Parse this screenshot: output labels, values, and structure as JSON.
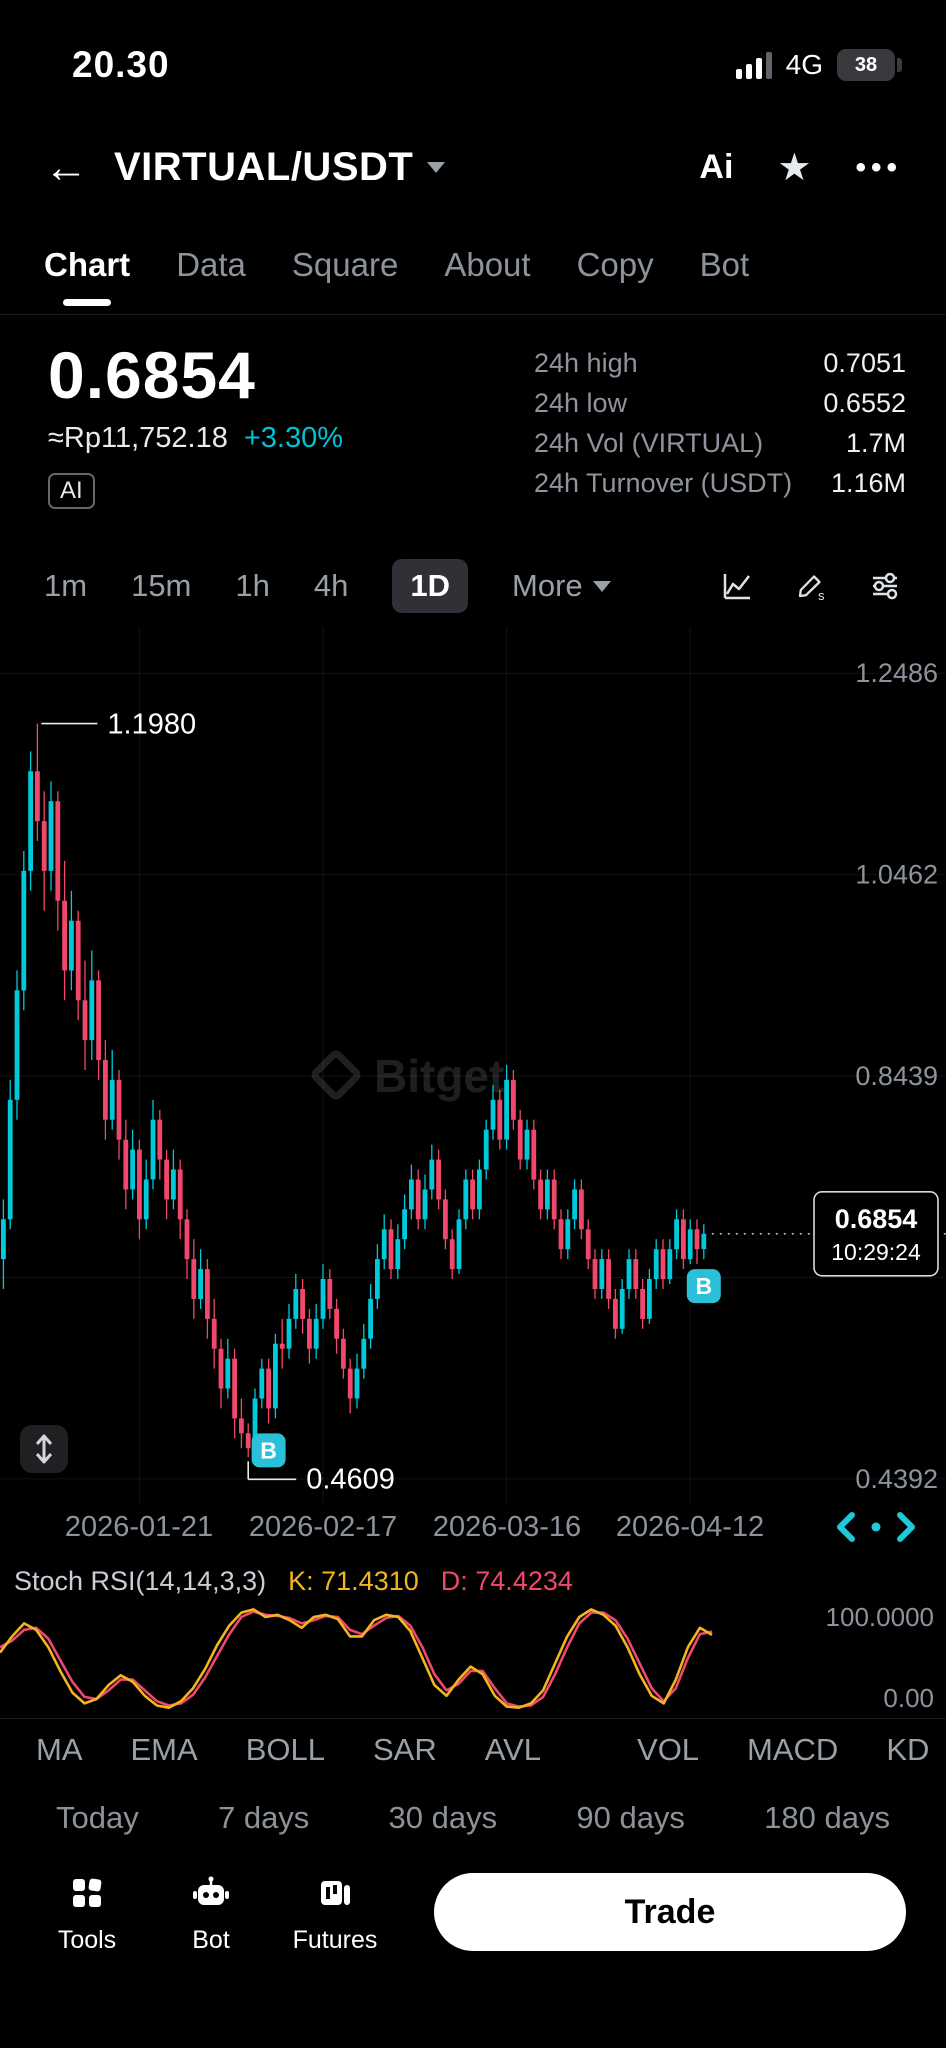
{
  "status_bar": {
    "time": "20.30",
    "network": "4G",
    "battery": "38"
  },
  "header": {
    "title": "VIRTUAL/USDT",
    "ai_label": "Ai"
  },
  "tabs": [
    {
      "label": "Chart",
      "active": true
    },
    {
      "label": "Data",
      "active": false
    },
    {
      "label": "Square",
      "active": false
    },
    {
      "label": "About",
      "active": false
    },
    {
      "label": "Copy",
      "active": false
    },
    {
      "label": "Bot",
      "active": false
    }
  ],
  "price": {
    "value": "0.6854",
    "fiat": "≈Rp11,752.18",
    "change": "+3.30%",
    "ai_badge": "AI"
  },
  "stats": [
    {
      "label": "24h high",
      "value": "0.7051"
    },
    {
      "label": "24h low",
      "value": "0.6552"
    },
    {
      "label": "24h Vol (VIRTUAL)",
      "value": "1.7M"
    },
    {
      "label": "24h Turnover (USDT)",
      "value": "1.16M"
    }
  ],
  "timeframes": {
    "items": [
      {
        "label": "1m",
        "active": false
      },
      {
        "label": "15m",
        "active": false
      },
      {
        "label": "1h",
        "active": false
      },
      {
        "label": "4h",
        "active": false
      },
      {
        "label": "1D",
        "active": true
      }
    ],
    "more_label": "More"
  },
  "chart_data": {
    "type": "candlestick",
    "ylim": [
      0.415,
      1.295
    ],
    "gridline_prices": [
      1.2486,
      1.0462,
      0.8439,
      0.6415,
      0.4392
    ],
    "y_axis_labels": [
      {
        "label": "1.2486",
        "price": 1.2486
      },
      {
        "label": "1.0462",
        "price": 1.0462
      },
      {
        "label": "0.8439",
        "price": 0.8439
      },
      {
        "label": "0.4392",
        "price": 0.4392
      }
    ],
    "x_axis_labels": [
      {
        "label": "2026-01-21",
        "index": 20
      },
      {
        "label": "2026-02-17",
        "index": 47
      },
      {
        "label": "2026-03-16",
        "index": 74
      },
      {
        "label": "2026-04-12",
        "index": 101
      }
    ],
    "high_annotation": {
      "index": 5,
      "price": 1.198,
      "label": "1.1980"
    },
    "low_annotation": {
      "index": 36,
      "price": 0.4609,
      "label": "0.4609"
    },
    "current_price": {
      "price": 0.6854,
      "label": "0.6854",
      "countdown": "10:29:24"
    },
    "buy_marker_label": "B",
    "buy_markers": [
      {
        "index": 39
      },
      {
        "index": 103
      }
    ],
    "watermark": "Bitget",
    "colors": {
      "up": "#00c9da",
      "down": "#f0486c",
      "buy_badge": "#2bc0d9",
      "accent_cyan": "#00c3d5"
    },
    "candles": [
      [
        0.66,
        0.72,
        0.63,
        0.7
      ],
      [
        0.7,
        0.84,
        0.69,
        0.82
      ],
      [
        0.82,
        0.95,
        0.8,
        0.93
      ],
      [
        0.93,
        1.07,
        0.91,
        1.05
      ],
      [
        1.05,
        1.17,
        1.03,
        1.15
      ],
      [
        1.15,
        1.198,
        1.08,
        1.1
      ],
      [
        1.1,
        1.13,
        1.01,
        1.05
      ],
      [
        1.05,
        1.14,
        1.03,
        1.12
      ],
      [
        1.12,
        1.13,
        0.99,
        1.02
      ],
      [
        1.02,
        1.06,
        0.92,
        0.95
      ],
      [
        0.95,
        1.03,
        0.93,
        1.0
      ],
      [
        1.0,
        1.01,
        0.9,
        0.92
      ],
      [
        0.92,
        0.96,
        0.85,
        0.88
      ],
      [
        0.88,
        0.97,
        0.86,
        0.94
      ],
      [
        0.94,
        0.95,
        0.84,
        0.86
      ],
      [
        0.86,
        0.88,
        0.78,
        0.8
      ],
      [
        0.8,
        0.87,
        0.79,
        0.84
      ],
      [
        0.84,
        0.85,
        0.76,
        0.78
      ],
      [
        0.78,
        0.8,
        0.71,
        0.73
      ],
      [
        0.73,
        0.79,
        0.72,
        0.77
      ],
      [
        0.77,
        0.78,
        0.68,
        0.7
      ],
      [
        0.7,
        0.76,
        0.69,
        0.74
      ],
      [
        0.74,
        0.82,
        0.73,
        0.8
      ],
      [
        0.8,
        0.81,
        0.74,
        0.76
      ],
      [
        0.76,
        0.77,
        0.7,
        0.72
      ],
      [
        0.72,
        0.77,
        0.71,
        0.75
      ],
      [
        0.75,
        0.76,
        0.68,
        0.7
      ],
      [
        0.7,
        0.71,
        0.64,
        0.66
      ],
      [
        0.66,
        0.68,
        0.6,
        0.62
      ],
      [
        0.62,
        0.67,
        0.61,
        0.65
      ],
      [
        0.65,
        0.66,
        0.58,
        0.6
      ],
      [
        0.6,
        0.62,
        0.55,
        0.57
      ],
      [
        0.57,
        0.58,
        0.51,
        0.53
      ],
      [
        0.53,
        0.58,
        0.52,
        0.56
      ],
      [
        0.56,
        0.57,
        0.48,
        0.5
      ],
      [
        0.5,
        0.52,
        0.47,
        0.485
      ],
      [
        0.485,
        0.495,
        0.4609,
        0.47
      ],
      [
        0.47,
        0.53,
        0.465,
        0.52
      ],
      [
        0.52,
        0.56,
        0.51,
        0.55
      ],
      [
        0.55,
        0.56,
        0.495,
        0.51
      ],
      [
        0.51,
        0.585,
        0.5,
        0.575
      ],
      [
        0.575,
        0.6,
        0.55,
        0.57
      ],
      [
        0.57,
        0.615,
        0.56,
        0.6
      ],
      [
        0.6,
        0.645,
        0.59,
        0.63
      ],
      [
        0.63,
        0.64,
        0.585,
        0.6
      ],
      [
        0.6,
        0.61,
        0.555,
        0.57
      ],
      [
        0.57,
        0.615,
        0.56,
        0.6
      ],
      [
        0.6,
        0.655,
        0.59,
        0.64
      ],
      [
        0.64,
        0.65,
        0.6,
        0.61
      ],
      [
        0.61,
        0.62,
        0.565,
        0.58
      ],
      [
        0.58,
        0.59,
        0.54,
        0.55
      ],
      [
        0.55,
        0.56,
        0.505,
        0.52
      ],
      [
        0.52,
        0.565,
        0.51,
        0.55
      ],
      [
        0.55,
        0.595,
        0.54,
        0.58
      ],
      [
        0.58,
        0.635,
        0.57,
        0.62
      ],
      [
        0.62,
        0.675,
        0.61,
        0.66
      ],
      [
        0.66,
        0.705,
        0.65,
        0.69
      ],
      [
        0.69,
        0.7,
        0.64,
        0.65
      ],
      [
        0.65,
        0.695,
        0.64,
        0.68
      ],
      [
        0.68,
        0.725,
        0.67,
        0.71
      ],
      [
        0.71,
        0.755,
        0.7,
        0.74
      ],
      [
        0.74,
        0.75,
        0.69,
        0.7
      ],
      [
        0.7,
        0.745,
        0.69,
        0.73
      ],
      [
        0.73,
        0.775,
        0.72,
        0.76
      ],
      [
        0.76,
        0.77,
        0.71,
        0.72
      ],
      [
        0.72,
        0.73,
        0.67,
        0.68
      ],
      [
        0.68,
        0.69,
        0.64,
        0.65
      ],
      [
        0.65,
        0.71,
        0.645,
        0.7
      ],
      [
        0.7,
        0.75,
        0.69,
        0.74
      ],
      [
        0.74,
        0.75,
        0.7,
        0.71
      ],
      [
        0.71,
        0.76,
        0.7,
        0.75
      ],
      [
        0.75,
        0.8,
        0.74,
        0.79
      ],
      [
        0.79,
        0.835,
        0.78,
        0.82
      ],
      [
        0.82,
        0.83,
        0.77,
        0.78
      ],
      [
        0.78,
        0.855,
        0.77,
        0.84
      ],
      [
        0.84,
        0.85,
        0.79,
        0.8
      ],
      [
        0.8,
        0.81,
        0.75,
        0.76
      ],
      [
        0.76,
        0.8,
        0.75,
        0.79
      ],
      [
        0.79,
        0.8,
        0.73,
        0.74
      ],
      [
        0.74,
        0.75,
        0.7,
        0.71
      ],
      [
        0.71,
        0.75,
        0.7,
        0.74
      ],
      [
        0.74,
        0.75,
        0.69,
        0.7
      ],
      [
        0.7,
        0.71,
        0.66,
        0.67
      ],
      [
        0.67,
        0.71,
        0.66,
        0.7
      ],
      [
        0.7,
        0.74,
        0.69,
        0.73
      ],
      [
        0.73,
        0.74,
        0.68,
        0.69
      ],
      [
        0.69,
        0.7,
        0.65,
        0.66
      ],
      [
        0.66,
        0.67,
        0.62,
        0.63
      ],
      [
        0.63,
        0.67,
        0.62,
        0.66
      ],
      [
        0.66,
        0.67,
        0.61,
        0.62
      ],
      [
        0.62,
        0.63,
        0.58,
        0.59
      ],
      [
        0.59,
        0.64,
        0.585,
        0.63
      ],
      [
        0.63,
        0.67,
        0.62,
        0.66
      ],
      [
        0.66,
        0.67,
        0.62,
        0.63
      ],
      [
        0.63,
        0.64,
        0.59,
        0.6
      ],
      [
        0.6,
        0.65,
        0.595,
        0.64
      ],
      [
        0.64,
        0.68,
        0.63,
        0.67
      ],
      [
        0.67,
        0.68,
        0.63,
        0.64
      ],
      [
        0.64,
        0.68,
        0.635,
        0.67
      ],
      [
        0.67,
        0.71,
        0.66,
        0.7
      ],
      [
        0.7,
        0.71,
        0.65,
        0.66
      ],
      [
        0.66,
        0.7,
        0.655,
        0.69
      ],
      [
        0.69,
        0.7,
        0.655,
        0.67
      ],
      [
        0.67,
        0.695,
        0.66,
        0.6854
      ]
    ]
  },
  "stoch": {
    "title": "Stoch RSI(14,14,3,3)",
    "k_label": "K: 71.4310",
    "d_label": "D: 74.4234",
    "k_color": "#f2b51d",
    "d_color": "#f0486c",
    "y_top_label": "100.0000",
    "y_bottom_label": "0.00",
    "k": [
      55,
      70,
      82,
      76,
      60,
      38,
      18,
      8,
      12,
      25,
      34,
      28,
      15,
      6,
      4,
      10,
      22,
      40,
      62,
      80,
      92,
      95,
      88,
      90,
      85,
      78,
      88,
      90,
      86,
      70,
      70,
      85,
      90,
      88,
      75,
      50,
      25,
      15,
      30,
      42,
      35,
      15,
      5,
      4,
      8,
      20,
      45,
      70,
      88,
      95,
      90,
      80,
      60,
      35,
      15,
      8,
      30,
      60,
      78,
      71.4
    ],
    "d": [
      60,
      66,
      76,
      78,
      68,
      48,
      28,
      14,
      12,
      20,
      30,
      30,
      20,
      10,
      6,
      8,
      16,
      32,
      52,
      72,
      88,
      93,
      90,
      89,
      87,
      82,
      85,
      89,
      88,
      76,
      72,
      80,
      87,
      89,
      80,
      60,
      35,
      20,
      26,
      38,
      38,
      22,
      8,
      5,
      6,
      14,
      35,
      60,
      82,
      92,
      92,
      85,
      68,
      45,
      22,
      10,
      22,
      50,
      72,
      74.4
    ]
  },
  "indicator_tabs": [
    "MA",
    "EMA",
    "BOLL",
    "SAR",
    "AVL",
    "VOL",
    "MACD",
    "KD"
  ],
  "ranges": [
    "Today",
    "7 days",
    "30 days",
    "90 days",
    "180 days"
  ],
  "bottom_bar": {
    "items": [
      {
        "label": "Tools"
      },
      {
        "label": "Bot"
      },
      {
        "label": "Futures"
      }
    ],
    "trade_label": "Trade"
  }
}
